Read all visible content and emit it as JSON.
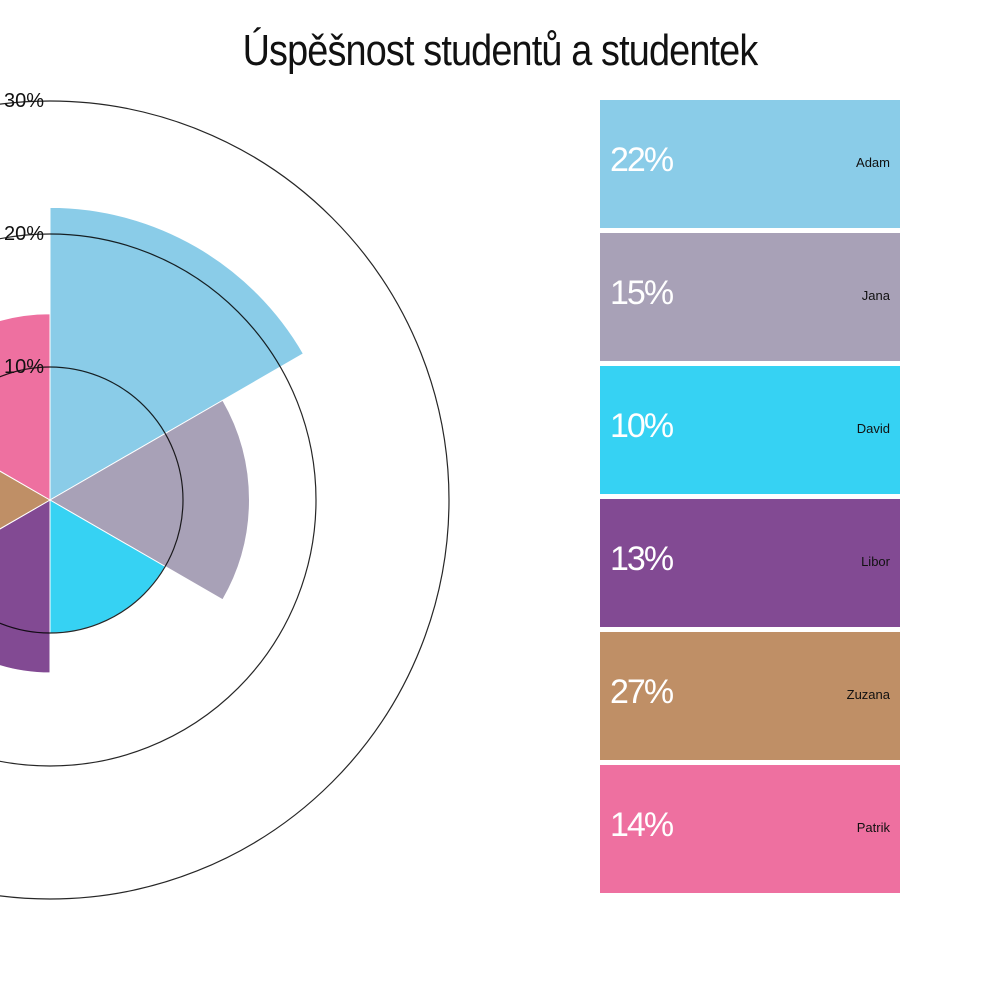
{
  "title": "Úspěšnost studentů a studentek",
  "chart_data": {
    "type": "polar-area",
    "title": "Úspěšnost studentů a studentek",
    "radial_ticks": [
      "10%",
      "20%",
      "30%"
    ],
    "radial_max": 30,
    "series": [
      {
        "name": "Adam",
        "value": 22,
        "label": "22%",
        "color": "#8ACCE8"
      },
      {
        "name": "Jana",
        "value": 15,
        "label": "15%",
        "color": "#A8A1B7"
      },
      {
        "name": "David",
        "value": 10,
        "label": "10%",
        "color": "#36D2F3"
      },
      {
        "name": "Libor",
        "value": 13,
        "label": "13%",
        "color": "#824A93"
      },
      {
        "name": "Zuzana",
        "value": 27,
        "label": "27%",
        "color": "#BF8F66"
      },
      {
        "name": "Patrik",
        "value": 14,
        "label": "14%",
        "color": "#EE70A0"
      }
    ]
  }
}
